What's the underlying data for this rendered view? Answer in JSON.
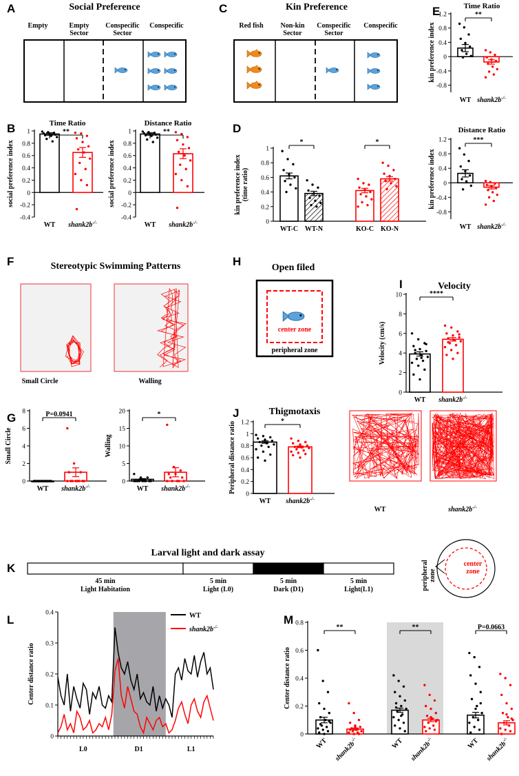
{
  "panels": {
    "A": {
      "letter": "A",
      "title": "Social Preference",
      "labels": [
        "Empty",
        "Empty\nSector",
        "Conspecific\nSector",
        "Conspecific"
      ]
    },
    "C": {
      "letter": "C",
      "title": "Kin Preference",
      "labels": [
        "Red fish",
        "Non-kin\nSector",
        "Conspecific\nSector",
        "Conspecific"
      ]
    },
    "F": {
      "letter": "F",
      "title": "Stereotypic Swimming Patterns",
      "captions": [
        "Small Circle",
        "Walling"
      ]
    },
    "H": {
      "letter": "H",
      "title": "Open filed",
      "center": "center zone",
      "peripheral": "peripheral zone"
    },
    "J_img": {
      "captions": [
        "WT",
        "shank2b-/-"
      ]
    },
    "K": {
      "letter": "K",
      "title": "Larval light and dark assay",
      "segments": [
        {
          "top": "45 min",
          "bottom": "Light Habitation"
        },
        {
          "top": "5 min",
          "bottom": "Light (L0)"
        },
        {
          "top": "5 min",
          "bottom": "Dark (D1)"
        },
        {
          "top": "5 min",
          "bottom": "Light(L1)"
        }
      ],
      "peripheral": "peripheral\nzone",
      "center": "center\nzone"
    }
  },
  "chart_data": [
    {
      "id": "E1",
      "letter": "E",
      "type": "bar",
      "title": "Time Ratio",
      "ylabel": "kin preference index",
      "categories": [
        "WT",
        "shank2b-/-"
      ],
      "values": [
        0.24,
        -0.15
      ],
      "sem": [
        0.1,
        0.06
      ],
      "ylim": [
        -1.0,
        1.2
      ],
      "yticks": [
        1.2,
        0.8,
        0.4,
        0.0,
        -0.4,
        -0.8
      ],
      "sig": "**",
      "colors": [
        "#000000",
        "#ff0000"
      ],
      "points": [
        [
          0.92,
          0.82,
          0.62,
          0.5,
          0.38,
          0.28,
          0.18,
          0.08,
          0.02,
          -0.02
        ],
        [
          0.18,
          0.12,
          0.05,
          -0.02,
          -0.08,
          -0.12,
          -0.2,
          -0.28,
          -0.35,
          -0.42,
          -0.5,
          -0.58
        ]
      ]
    },
    {
      "id": "E2",
      "type": "bar",
      "title": "Distance Ratio",
      "ylabel": "kin preference index",
      "categories": [
        "WT",
        "shank2b-/-"
      ],
      "values": [
        0.26,
        -0.12
      ],
      "sem": [
        0.1,
        0.05
      ],
      "ylim": [
        -1.0,
        1.2
      ],
      "yticks": [
        1.2,
        0.8,
        0.4,
        0.0,
        -0.4,
        -0.8
      ],
      "sig": "***",
      "colors": [
        "#000000",
        "#ff0000"
      ],
      "points": [
        [
          0.95,
          0.78,
          0.6,
          0.45,
          0.32,
          0.2,
          0.1,
          0.04,
          -0.08,
          -0.18
        ],
        [
          0.05,
          0.02,
          -0.02,
          -0.06,
          -0.1,
          -0.15,
          -0.2,
          -0.26,
          -0.33,
          -0.4,
          -0.5,
          -0.6
        ]
      ]
    },
    {
      "id": "B1",
      "letter": "B",
      "type": "bar",
      "title": "Time Ratio",
      "ylabel": "social preference index",
      "categories": [
        "WT",
        "shank2b-/-"
      ],
      "values": [
        0.95,
        0.65
      ],
      "sem": [
        0.02,
        0.08
      ],
      "ylim": [
        -0.4,
        1.0
      ],
      "yticks": [
        1.0,
        0.8,
        0.6,
        0.4,
        0.2,
        0.0,
        -0.2,
        -0.4
      ],
      "sig": "**",
      "colors": [
        "#000000",
        "#ff0000"
      ],
      "points": [
        [
          0.99,
          0.98,
          0.97,
          0.96,
          0.95,
          0.94,
          0.93,
          0.92,
          0.9,
          0.87,
          0.83
        ],
        [
          0.97,
          0.96,
          0.92,
          0.88,
          0.82,
          0.75,
          0.7,
          0.65,
          0.55,
          0.48,
          0.38,
          0.3,
          0.2,
          0.12,
          -0.27
        ]
      ]
    },
    {
      "id": "B2",
      "type": "bar",
      "title": "Distance Ratio",
      "ylabel": "social preference index",
      "categories": [
        "WT",
        "shank2b-/-"
      ],
      "values": [
        0.95,
        0.63
      ],
      "sem": [
        0.02,
        0.08
      ],
      "ylim": [
        -0.4,
        1.0
      ],
      "yticks": [
        1.0,
        0.8,
        0.6,
        0.4,
        0.2,
        0.0,
        -0.2,
        -0.4
      ],
      "sig": "**",
      "colors": [
        "#000000",
        "#ff0000"
      ],
      "points": [
        [
          0.99,
          0.98,
          0.97,
          0.96,
          0.95,
          0.94,
          0.93,
          0.92,
          0.89,
          0.86,
          0.82
        ],
        [
          0.98,
          0.95,
          0.9,
          0.85,
          0.78,
          0.72,
          0.66,
          0.6,
          0.52,
          0.45,
          0.38,
          0.3,
          0.2,
          0.1,
          -0.25
        ]
      ]
    },
    {
      "id": "D",
      "letter": "D",
      "type": "bar",
      "ylabel": "kin preference index\n(time ratio)",
      "categories": [
        "WT-C",
        "WT-N",
        "KO-C",
        "KO-N"
      ],
      "values": [
        0.62,
        0.38,
        0.42,
        0.58
      ],
      "sem": [
        0.04,
        0.03,
        0.03,
        0.03
      ],
      "ylim": [
        0.0,
        1.0
      ],
      "yticks": [
        1.0,
        0.8,
        0.6,
        0.4,
        0.2,
        0.0
      ],
      "sig": [
        "*",
        "*"
      ],
      "colors": [
        "#000000",
        "#000000",
        "#ff0000",
        "#ff0000"
      ],
      "hatched": [
        false,
        true,
        false,
        true
      ],
      "points": [
        [
          0.96,
          0.85,
          0.78,
          0.7,
          0.64,
          0.6,
          0.55,
          0.5,
          0.45,
          0.4
        ],
        [
          0.56,
          0.5,
          0.46,
          0.42,
          0.38,
          0.35,
          0.32,
          0.28,
          0.25,
          0.22,
          0.2
        ],
        [
          0.58,
          0.52,
          0.5,
          0.46,
          0.43,
          0.4,
          0.37,
          0.34,
          0.3,
          0.26,
          0.22,
          0.2
        ],
        [
          0.8,
          0.76,
          0.7,
          0.65,
          0.62,
          0.58,
          0.55,
          0.52,
          0.48,
          0.44
        ]
      ]
    },
    {
      "id": "I",
      "letter": "I",
      "type": "bar",
      "title": "Velocity",
      "ylabel": "Velocity (cm/s)",
      "categories": [
        "WT",
        "shank2b-/-"
      ],
      "values": [
        3.9,
        5.4
      ],
      "sem": [
        0.22,
        0.18
      ],
      "ylim": [
        0,
        10
      ],
      "yticks": [
        10,
        8,
        6,
        4,
        2,
        0
      ],
      "sig": "****",
      "colors": [
        "#000000",
        "#ff0000"
      ],
      "points": [
        [
          6.0,
          5.4,
          5.0,
          4.7,
          4.4,
          4.2,
          4.0,
          3.8,
          3.6,
          3.4,
          3.2,
          3.0,
          2.7,
          2.3,
          1.8,
          1.3,
          4.9,
          4.3,
          3.5
        ],
        [
          6.8,
          6.6,
          6.2,
          6.0,
          5.8,
          5.6,
          5.5,
          5.3,
          5.2,
          5.0,
          4.8,
          4.6,
          4.3,
          4.0,
          3.8,
          3.4,
          5.9,
          5.1
        ]
      ]
    },
    {
      "id": "G1",
      "letter": "G",
      "type": "bar",
      "ylabel": "Small Circle",
      "categories": [
        "WT",
        "shank2b-/-"
      ],
      "values": [
        0,
        1.0
      ],
      "sem": [
        0,
        0.5
      ],
      "ylim": [
        0,
        8
      ],
      "yticks": [
        8,
        6,
        4,
        2,
        0
      ],
      "sig": "P=0.0941",
      "colors": [
        "#000000",
        "#ff0000"
      ],
      "points": [
        [
          0,
          0,
          0,
          0,
          0,
          0,
          0,
          0,
          0,
          0,
          0,
          0
        ],
        [
          6,
          2,
          1,
          1,
          0,
          0,
          0,
          0,
          0,
          0,
          0,
          0
        ]
      ]
    },
    {
      "id": "G2",
      "type": "bar",
      "ylabel": "Walling",
      "categories": [
        "WT",
        "shank2b-/-"
      ],
      "values": [
        0.5,
        2.5
      ],
      "sem": [
        0.2,
        1.3
      ],
      "ylim": [
        0,
        20
      ],
      "yticks": [
        20,
        15,
        10,
        5,
        0
      ],
      "sig": "*",
      "colors": [
        "#000000",
        "#ff0000"
      ],
      "points": [
        [
          2,
          1,
          1,
          0,
          0,
          0,
          0,
          0,
          0,
          0,
          0,
          0
        ],
        [
          16,
          4,
          3,
          2,
          2,
          1,
          1,
          0,
          0,
          0,
          0,
          0
        ]
      ]
    },
    {
      "id": "J",
      "letter": "J",
      "type": "bar",
      "title": "Thigmotaxis",
      "ylabel": "Peripheral distance ratio",
      "categories": [
        "WT",
        "shank2b-/-"
      ],
      "values": [
        0.86,
        0.78
      ],
      "sem": [
        0.02,
        0.015
      ],
      "ylim": [
        0.0,
        1.2
      ],
      "yticks": [
        1.2,
        1.0,
        0.8,
        0.6,
        0.4,
        0.2,
        0.0
      ],
      "sig": "*",
      "colors": [
        "#000000",
        "#ff0000"
      ],
      "points": [
        [
          0.98,
          0.96,
          0.94,
          0.92,
          0.9,
          0.88,
          0.86,
          0.84,
          0.82,
          0.8,
          0.78,
          0.74,
          0.7,
          0.65,
          0.6,
          0.55
        ],
        [
          0.92,
          0.88,
          0.86,
          0.84,
          0.82,
          0.8,
          0.78,
          0.77,
          0.76,
          0.74,
          0.72,
          0.7,
          0.68,
          0.66,
          0.64,
          0.6
        ]
      ]
    },
    {
      "id": "L",
      "letter": "L",
      "type": "line",
      "ylabel": "Center distance ratio",
      "ylim": [
        0.0,
        0.4
      ],
      "yticks": [
        0.4,
        0.3,
        0.2,
        0.1,
        0.0
      ],
      "xgroups": [
        "L0",
        "D1",
        "L1"
      ],
      "shade": "D1",
      "series": [
        {
          "name": "WT",
          "color": "#000000",
          "values": [
            0.19,
            0.13,
            0.1,
            0.2,
            0.08,
            0.16,
            0.12,
            0.09,
            0.17,
            0.15,
            0.07,
            0.14,
            0.12,
            0.16,
            0.1,
            0.09,
            0.13,
            0.11,
            0.35,
            0.27,
            0.22,
            0.2,
            0.24,
            0.18,
            0.15,
            0.2,
            0.12,
            0.14,
            0.11,
            0.1,
            0.16,
            0.08,
            0.13,
            0.09,
            0.12,
            0.1,
            0.06,
            0.2,
            0.22,
            0.18,
            0.25,
            0.21,
            0.2,
            0.26,
            0.19,
            0.24,
            0.27,
            0.2,
            0.22,
            0.15
          ]
        },
        {
          "name": "shank2b-/-",
          "color": "#ff0000",
          "values": [
            0.01,
            0.03,
            0.07,
            0.02,
            0.04,
            0.01,
            0.08,
            0.06,
            0.02,
            0.03,
            0.05,
            0.01,
            0.02,
            0.04,
            0.03,
            0.06,
            0.02,
            0.07,
            0.21,
            0.25,
            0.13,
            0.09,
            0.16,
            0.12,
            0.08,
            0.07,
            0.03,
            0.01,
            0.06,
            0.04,
            0.02,
            0.05,
            0.06,
            0.03,
            0.04,
            0.01,
            0.02,
            0.05,
            0.09,
            0.11,
            0.07,
            0.04,
            0.1,
            0.12,
            0.08,
            0.06,
            0.11,
            0.13,
            0.09,
            0.05
          ]
        }
      ]
    },
    {
      "id": "M",
      "letter": "M",
      "type": "bar",
      "ylabel": "Center distance ratio",
      "categories": [
        "WT",
        "shank2b-/-",
        "WT",
        "shank2b-/-",
        "WT",
        "shank2b-/-"
      ],
      "groups": [
        "L0",
        "D1",
        "L1"
      ],
      "values": [
        0.1,
        0.035,
        0.17,
        0.1,
        0.135,
        0.08
      ],
      "sem": [
        0.02,
        0.008,
        0.015,
        0.012,
        0.02,
        0.015
      ],
      "ylim": [
        0.0,
        0.8
      ],
      "yticks": [
        0.8,
        0.6,
        0.4,
        0.2,
        0.0
      ],
      "sig": [
        "**",
        "**",
        "P=0.0663"
      ],
      "colors": [
        "#000000",
        "#ff0000",
        "#000000",
        "#ff0000",
        "#000000",
        "#ff0000"
      ],
      "points": [
        [
          0.6,
          0.38,
          0.3,
          0.22,
          0.18,
          0.15,
          0.12,
          0.1,
          0.08,
          0.06,
          0.05,
          0.04,
          0.03,
          0.02,
          0.01,
          0.0,
          0.09,
          0.07
        ],
        [
          0.22,
          0.15,
          0.1,
          0.08,
          0.06,
          0.05,
          0.04,
          0.03,
          0.02,
          0.02,
          0.01,
          0.01,
          0.0,
          0.0,
          0.03,
          0.05
        ],
        [
          0.42,
          0.38,
          0.34,
          0.3,
          0.27,
          0.24,
          0.22,
          0.2,
          0.18,
          0.16,
          0.14,
          0.12,
          0.1,
          0.08,
          0.06,
          0.04,
          0.02,
          0.19,
          0.13
        ],
        [
          0.35,
          0.28,
          0.24,
          0.2,
          0.18,
          0.15,
          0.13,
          0.11,
          0.1,
          0.08,
          0.06,
          0.05,
          0.04,
          0.03,
          0.02,
          0.12,
          0.09
        ],
        [
          0.58,
          0.55,
          0.48,
          0.42,
          0.36,
          0.3,
          0.25,
          0.2,
          0.15,
          0.12,
          0.1,
          0.08,
          0.05,
          0.03,
          0.01,
          0.18,
          0.22
        ],
        [
          0.43,
          0.4,
          0.35,
          0.28,
          0.22,
          0.18,
          0.15,
          0.12,
          0.1,
          0.08,
          0.06,
          0.04,
          0.03,
          0.02,
          0.0,
          0.14,
          0.11
        ]
      ]
    }
  ]
}
